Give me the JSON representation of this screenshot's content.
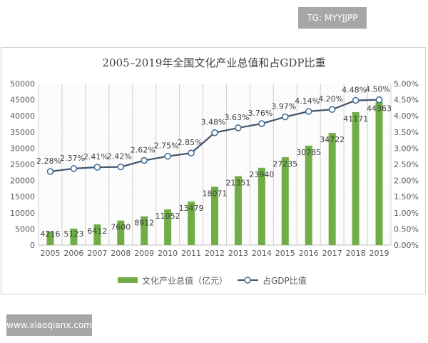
{
  "badges": {
    "tg": "TG: MYYJJPP",
    "watermark": "www.xiaoqianx.com"
  },
  "chart_data": {
    "type": "bar+line",
    "title": "2005–2019年全国文化产业总值和占GDP比重",
    "categories": [
      "2005",
      "2006",
      "2007",
      "2008",
      "2009",
      "2010",
      "2011",
      "2012",
      "2013",
      "2014",
      "2015",
      "2016",
      "2017",
      "2018",
      "2019"
    ],
    "series": [
      {
        "name": "文化产业总值（亿元）",
        "type": "bar",
        "axis": "left",
        "color": "#70ad47",
        "values": [
          4216,
          5123,
          6412,
          7600,
          8912,
          11052,
          13479,
          18071,
          21351,
          23940,
          27235,
          30785,
          34722,
          41171,
          44363
        ]
      },
      {
        "name": "占GDP比值",
        "type": "line",
        "axis": "right",
        "color": "#44546a",
        "marker_fill": "#ffffff",
        "marker_stroke": "#41719c",
        "values": [
          2.28,
          2.37,
          2.41,
          2.42,
          2.62,
          2.75,
          2.85,
          3.48,
          3.63,
          3.76,
          3.97,
          4.14,
          4.2,
          4.48,
          4.5
        ],
        "labels": [
          "2.28%",
          "2.37%",
          "2.41%",
          "2.42%",
          "2.62%",
          "2.75%",
          "2.85%",
          "3.48%",
          "3.63%",
          "3.76%",
          "3.97%",
          "4.14%",
          "4.20%",
          "4.48%",
          "4.50%"
        ]
      }
    ],
    "left_axis": {
      "ylim": [
        0,
        50000
      ],
      "ticks": [
        "0",
        "5000",
        "10000",
        "15000",
        "20000",
        "25000",
        "30000",
        "35000",
        "40000",
        "45000",
        "50000"
      ]
    },
    "right_axis": {
      "ylim": [
        0,
        5
      ],
      "ticks": [
        "0.00%",
        "0.50%",
        "1.00%",
        "1.50%",
        "2.00%",
        "2.50%",
        "3.00%",
        "3.50%",
        "4.00%",
        "4.50%",
        "5.00%"
      ]
    },
    "grid": "vertical",
    "legend": "bottom"
  }
}
